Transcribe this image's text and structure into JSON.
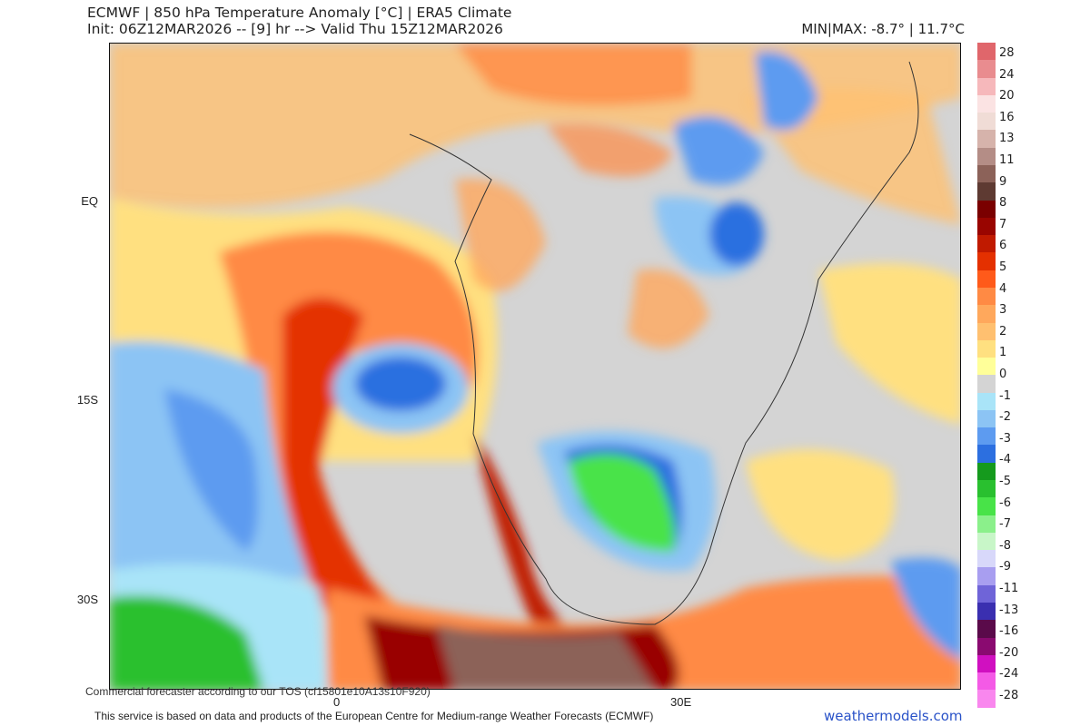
{
  "header": {
    "title": "ECMWF | 850 hPa Temperature Anomaly [°C] | ERA5 Climate",
    "subtitle": "Init: 06Z12MAR2026 -- [9] hr --> Valid Thu 15Z12MAR2026",
    "minmax": "MIN|MAX: -8.7° | 11.7°C"
  },
  "axes": {
    "lat_labels": [
      "EQ",
      "15S",
      "30S"
    ],
    "lon_labels": [
      "0",
      "30E"
    ]
  },
  "colorbar": {
    "labels": [
      "28",
      "24",
      "20",
      "16",
      "13",
      "11",
      "9",
      "8",
      "7",
      "6",
      "5",
      "4",
      "3",
      "2",
      "1",
      "0",
      "-1",
      "-2",
      "-3",
      "-4",
      "-5",
      "-6",
      "-7",
      "-8",
      "-9",
      "-11",
      "-13",
      "-16",
      "-20",
      "-24",
      "-28"
    ],
    "colors": [
      "#e0666b",
      "#e98c8f",
      "#f6b8bb",
      "#fbe3e3",
      "#f0dcd6",
      "#d6b3ab",
      "#b48d86",
      "#8c6259",
      "#5e3a32",
      "#7a0000",
      "#990500",
      "#c01a00",
      "#e43000",
      "#ff5a1a",
      "#ff8a44",
      "#ffa85c",
      "#ffc070",
      "#ffe080",
      "#ffff99",
      "#d4d4d4",
      "#a9e4f8",
      "#8cc4f4",
      "#5d9bf0",
      "#2c6fe0",
      "#159a1d",
      "#29c02f",
      "#48e348",
      "#8bf08b",
      "#c8f6c8",
      "#d8d8fa",
      "#a89ef0",
      "#6f64d8",
      "#3a2fb0",
      "#5a0a4a",
      "#8a0a70",
      "#d010c0",
      "#f45ae6",
      "#f987ee"
    ]
  },
  "footer": {
    "commercial": "Commercial forecaster according to our TOS (cf15801e10A13s10F920)",
    "attribution": "This service is based on data and products of the European Centre for Medium-range Weather Forecasts (ECMWF)",
    "brand": "weathermodels.com"
  }
}
